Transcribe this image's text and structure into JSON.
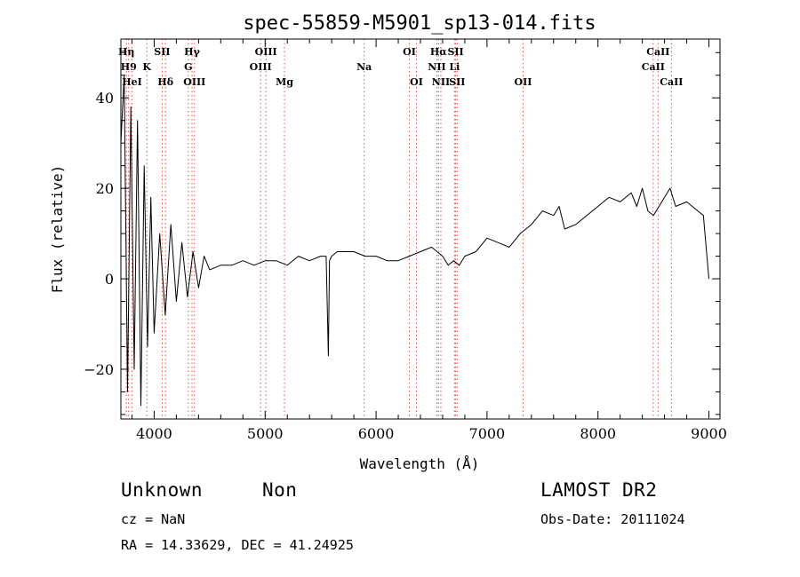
{
  "chart_data": {
    "type": "line",
    "title": "spec-55859-M5901_sp13-014.fits",
    "xlabel": "Wavelength (Å)",
    "ylabel": "Flux (relative)",
    "xlim": [
      3700,
      9100
    ],
    "ylim": [
      -31,
      53
    ],
    "xticks": [
      4000,
      5000,
      6000,
      7000,
      8000,
      9000
    ],
    "yticks": [
      -20,
      0,
      20,
      40
    ],
    "grid": false,
    "line_color": "#000000",
    "marker_color": "#d9534f",
    "series": [
      {
        "x": [
          3700,
          3730,
          3760,
          3790,
          3820,
          3850,
          3880,
          3910,
          3940,
          3970,
          4000,
          4050,
          4100,
          4150,
          4200,
          4250,
          4300,
          4350,
          4400,
          4450,
          4500,
          4600,
          4700,
          4800,
          4900,
          5000,
          5100,
          5200,
          5300,
          5400,
          5500,
          5550,
          5570,
          5580,
          5600,
          5650,
          5700,
          5800,
          5900,
          6000,
          6100,
          6200,
          6300,
          6400,
          6500,
          6550,
          6600,
          6650,
          6700,
          6750,
          6800,
          6900,
          7000,
          7100,
          7200,
          7300,
          7400,
          7500,
          7600,
          7650,
          7700,
          7800,
          7900,
          8000,
          8100,
          8200,
          8300,
          8350,
          8400,
          8450,
          8500,
          8550,
          8600,
          8650,
          8700,
          8800,
          8900,
          8950,
          9000
        ],
        "y": [
          30,
          45,
          -25,
          38,
          -20,
          35,
          -28,
          25,
          -15,
          18,
          -12,
          10,
          -8,
          12,
          -5,
          8,
          -4,
          6,
          -2,
          5,
          2,
          3,
          3,
          4,
          3,
          4,
          4,
          3,
          5,
          4,
          5,
          5,
          -17,
          4,
          5,
          6,
          6,
          6,
          5,
          5,
          4,
          4,
          5,
          6,
          7,
          6,
          5,
          3,
          4,
          3,
          5,
          6,
          9,
          8,
          7,
          10,
          12,
          15,
          14,
          16,
          11,
          12,
          14,
          16,
          18,
          17,
          19,
          16,
          20,
          15,
          14,
          16,
          18,
          20,
          16,
          17,
          15,
          14,
          0
        ]
      }
    ],
    "lines": [
      {
        "x": 3750,
        "label": "Hη",
        "row": 1
      },
      {
        "x": 3770,
        "label": "H9",
        "row": 2
      },
      {
        "x": 3800,
        "label": "HeI",
        "row": 3
      },
      {
        "x": 3934,
        "label": "K",
        "row": 2
      },
      {
        "x": 4072,
        "label": "SII",
        "row": 1
      },
      {
        "x": 4102,
        "label": "Hδ",
        "row": 3
      },
      {
        "x": 4308,
        "label": "G",
        "row": 2
      },
      {
        "x": 4341,
        "label": "Hγ",
        "row": 1
      },
      {
        "x": 4363,
        "label": "OIII",
        "row": 3
      },
      {
        "x": 4959,
        "label": "OIII",
        "row": 2
      },
      {
        "x": 5007,
        "label": "OIII",
        "row": 1
      },
      {
        "x": 5175,
        "label": "Mg",
        "row": 3
      },
      {
        "x": 5893,
        "label": "Na",
        "row": 2
      },
      {
        "x": 6300,
        "label": "OI",
        "row": 1
      },
      {
        "x": 6364,
        "label": "OI",
        "row": 3
      },
      {
        "x": 6548,
        "label": "NII",
        "row": 2
      },
      {
        "x": 6563,
        "label": "Hα",
        "row": 1
      },
      {
        "x": 6584,
        "label": "NII",
        "row": 3
      },
      {
        "x": 6707,
        "label": "Li",
        "row": 2
      },
      {
        "x": 6717,
        "label": "SII",
        "row": 1
      },
      {
        "x": 6731,
        "label": "SII",
        "row": 3
      },
      {
        "x": 7325,
        "label": "OII",
        "row": 3
      },
      {
        "x": 8498,
        "label": "CaII",
        "row": 2
      },
      {
        "x": 8542,
        "label": "CaII",
        "row": 1
      },
      {
        "x": 8662,
        "label": "CaII",
        "row": 3
      }
    ]
  },
  "info": {
    "class_label": "Unknown",
    "subclass_label": "Non",
    "survey": "LAMOST DR2",
    "cz": "cz = NaN",
    "obs_date": "Obs-Date: 20111024",
    "coords": "RA =  14.33629, DEC =  41.24925"
  }
}
